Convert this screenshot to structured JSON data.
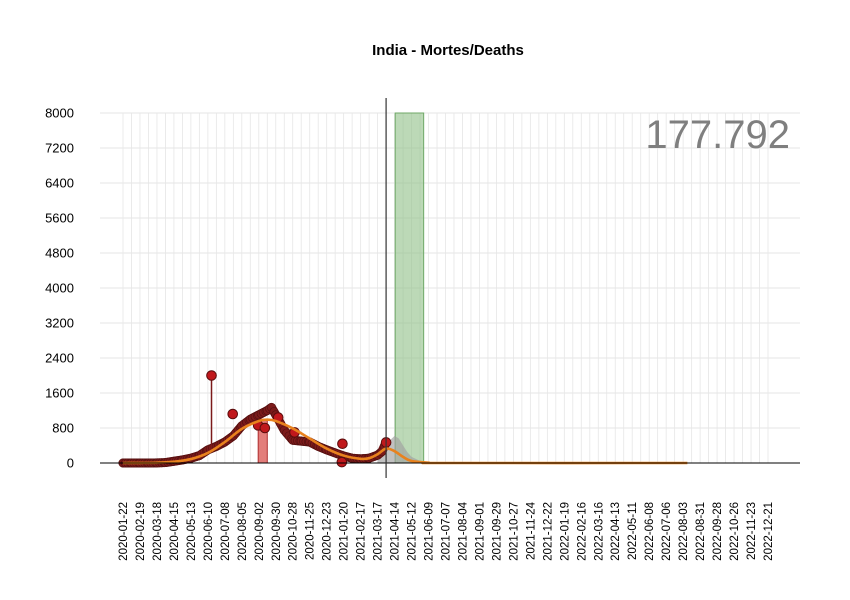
{
  "chart_data": {
    "type": "line",
    "title": "India - Mortes/Deaths",
    "total_label": "177.792",
    "xlabel": "",
    "ylabel": "",
    "ylim": [
      0,
      8000
    ],
    "yticks": [
      0,
      800,
      1600,
      2400,
      3200,
      4000,
      4800,
      5600,
      6400,
      7200,
      8000
    ],
    "xlim": [
      "2020-01-22",
      "2022-12-31"
    ],
    "xtick_labels": [
      "2020-01-22",
      "2020-02-19",
      "2020-03-18",
      "2020-04-15",
      "2020-05-13",
      "2020-06-10",
      "2020-07-08",
      "2020-08-05",
      "2020-09-02",
      "2020-09-30",
      "2020-10-28",
      "2020-11-25",
      "2020-12-23",
      "2021-01-20",
      "2021-02-17",
      "2021-03-17",
      "2021-04-14",
      "2021-05-12",
      "2021-06-09",
      "2021-07-07",
      "2021-08-04",
      "2021-09-01",
      "2021-09-29",
      "2021-10-27",
      "2021-11-24",
      "2021-12-22",
      "2022-01-19",
      "2022-02-16",
      "2022-03-16",
      "2022-04-13",
      "2022-05-11",
      "2022-06-08",
      "2022-07-06",
      "2022-08-03",
      "2022-08-31",
      "2022-09-28",
      "2022-10-26",
      "2022-11-23",
      "2022-12-21"
    ],
    "grid": true,
    "current_date": "2021-03-31",
    "peak_band": {
      "start": "2020-09-01",
      "end": "2020-09-16",
      "value": 1000,
      "color": "#d9534f"
    },
    "forecast_peak_band": {
      "start": "2021-04-15",
      "end": "2021-06-01",
      "value": 8000,
      "color": "#8fbf87"
    },
    "colors": {
      "observed": "#7b1a1a",
      "outlier": "#c0181c",
      "fit": "#e8821e",
      "forecast": "#a0a0a0",
      "grid": "#e6e6e6"
    },
    "outliers": [
      {
        "date": "2020-06-16",
        "value": 2000
      },
      {
        "date": "2020-07-21",
        "value": 1120
      },
      {
        "date": "2020-10-04",
        "value": 1040
      },
      {
        "date": "2020-09-01",
        "value": 860
      },
      {
        "date": "2020-09-12",
        "value": 800
      },
      {
        "date": "2020-10-31",
        "value": 700
      },
      {
        "date": "2021-01-18",
        "value": 440
      },
      {
        "date": "2021-01-17",
        "value": 20
      },
      {
        "date": "2021-03-31",
        "value": 470
      }
    ],
    "series": [
      {
        "kind": "observed",
        "points": [
          [
            "2020-01-22",
            0
          ],
          [
            "2020-02-05",
            0
          ],
          [
            "2020-02-19",
            0
          ],
          [
            "2020-03-04",
            0
          ],
          [
            "2020-03-18",
            2
          ],
          [
            "2020-04-01",
            10
          ],
          [
            "2020-04-15",
            40
          ],
          [
            "2020-04-29",
            70
          ],
          [
            "2020-05-13",
            110
          ],
          [
            "2020-05-27",
            170
          ],
          [
            "2020-06-10",
            300
          ],
          [
            "2020-06-24",
            380
          ],
          [
            "2020-07-08",
            480
          ],
          [
            "2020-07-22",
            620
          ],
          [
            "2020-08-05",
            850
          ],
          [
            "2020-08-19",
            1000
          ],
          [
            "2020-09-02",
            1100
          ],
          [
            "2020-09-16",
            1200
          ],
          [
            "2020-09-23",
            1270
          ],
          [
            "2020-09-30",
            1100
          ],
          [
            "2020-10-14",
            750
          ],
          [
            "2020-10-28",
            520
          ],
          [
            "2020-11-11",
            500
          ],
          [
            "2020-11-25",
            480
          ],
          [
            "2020-12-09",
            380
          ],
          [
            "2020-12-23",
            300
          ],
          [
            "2021-01-06",
            230
          ],
          [
            "2021-01-20",
            160
          ],
          [
            "2021-02-03",
            110
          ],
          [
            "2021-02-17",
            95
          ],
          [
            "2021-03-03",
            110
          ],
          [
            "2021-03-17",
            180
          ],
          [
            "2021-03-24",
            260
          ],
          [
            "2021-03-31",
            470
          ]
        ]
      },
      {
        "kind": "fit",
        "points": [
          [
            "2020-01-22",
            0
          ],
          [
            "2020-02-19",
            2
          ],
          [
            "2020-03-18",
            8
          ],
          [
            "2020-04-15",
            30
          ],
          [
            "2020-05-13",
            90
          ],
          [
            "2020-06-10",
            230
          ],
          [
            "2020-07-08",
            480
          ],
          [
            "2020-08-05",
            780
          ],
          [
            "2020-09-02",
            960
          ],
          [
            "2020-09-16",
            990
          ],
          [
            "2020-09-30",
            960
          ],
          [
            "2020-10-28",
            790
          ],
          [
            "2020-11-25",
            560
          ],
          [
            "2020-12-23",
            330
          ],
          [
            "2021-01-20",
            170
          ],
          [
            "2021-02-17",
            95
          ],
          [
            "2021-03-03",
            110
          ],
          [
            "2021-03-17",
            200
          ],
          [
            "2021-03-31",
            330
          ],
          [
            "2021-04-14",
            270
          ],
          [
            "2021-04-28",
            140
          ],
          [
            "2021-05-12",
            45
          ],
          [
            "2021-06-09",
            8
          ],
          [
            "2021-07-07",
            0
          ],
          [
            "2022-08-10",
            0
          ]
        ]
      },
      {
        "kind": "forecast",
        "points": [
          [
            "2021-03-17",
            200
          ],
          [
            "2021-03-31",
            400
          ],
          [
            "2021-04-07",
            530
          ],
          [
            "2021-04-14",
            620
          ],
          [
            "2021-04-21",
            560
          ],
          [
            "2021-04-28",
            400
          ],
          [
            "2021-05-05",
            250
          ],
          [
            "2021-05-12",
            140
          ],
          [
            "2021-05-26",
            50
          ],
          [
            "2021-06-09",
            15
          ],
          [
            "2021-07-07",
            0
          ]
        ]
      }
    ]
  }
}
